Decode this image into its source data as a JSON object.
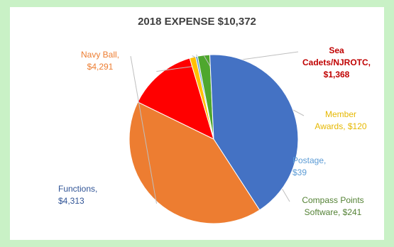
{
  "chart_data": {
    "type": "pie",
    "title": "2018 EXPENSE $10,372",
    "slices": [
      {
        "category": "Sea Cadets/NJROTC",
        "label_lines": [
          "Sea",
          "Cadets/NJROTC,",
          "$1,368"
        ],
        "value": 1368,
        "color": "#ff0000",
        "label_color": "#c00000",
        "label_bold": true
      },
      {
        "category": "Member Awards",
        "label_lines": [
          "Member",
          "Awards, $120"
        ],
        "value": 120,
        "color": "#ffc000",
        "label_color": "#e6b800",
        "label_bold": false
      },
      {
        "category": "Postage",
        "label_lines": [
          "Postage,",
          "$39"
        ],
        "value": 39,
        "color": "#5b9bd5",
        "label_color": "#5b9bd5",
        "label_bold": false
      },
      {
        "category": "Compass Points Software",
        "label_lines": [
          "Compass Points",
          "Software, $241"
        ],
        "value": 241,
        "color": "#4ea72e",
        "label_color": "#548235",
        "label_bold": false
      },
      {
        "category": "Functions",
        "label_lines": [
          "Functions,",
          "$4,313"
        ],
        "value": 4313,
        "color": "#4472c4",
        "label_color": "#305496",
        "label_bold": false
      },
      {
        "category": "Navy Ball",
        "label_lines": [
          "Navy Ball,",
          "$4,291"
        ],
        "value": 4291,
        "color": "#ed7d31",
        "label_color": "#ed7d31",
        "label_bold": false
      }
    ]
  }
}
